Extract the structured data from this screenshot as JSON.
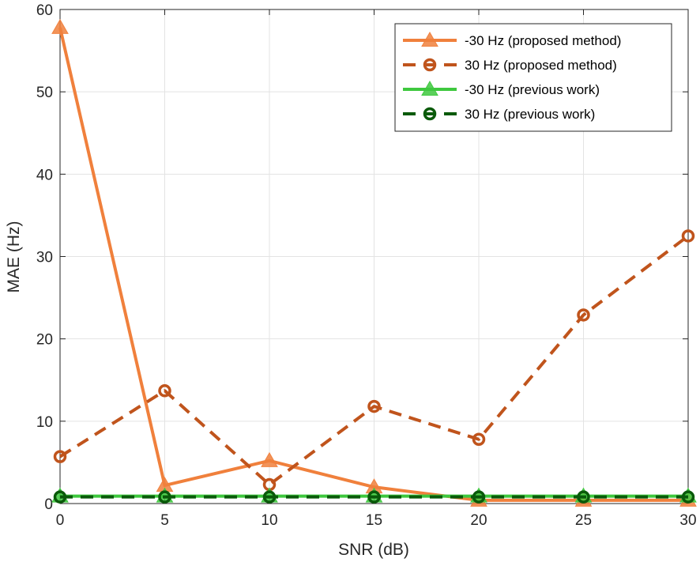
{
  "chart_data": {
    "type": "line",
    "title": "",
    "xlabel": "SNR (dB)",
    "ylabel": "MAE (Hz)",
    "xlim": [
      0,
      30
    ],
    "ylim": [
      0,
      60
    ],
    "xticks": [
      0,
      5,
      10,
      15,
      20,
      25,
      30
    ],
    "yticks": [
      0,
      10,
      20,
      30,
      40,
      50,
      60
    ],
    "grid": true,
    "legend_position": "top-right",
    "x": [
      0,
      5,
      10,
      15,
      20,
      25,
      30
    ],
    "series": [
      {
        "name": "-30 Hz (proposed method)",
        "values": [
          57.8,
          2.2,
          5.2,
          2.0,
          0.4,
          0.4,
          0.4
        ],
        "color": "#f0803c",
        "line_style": "solid",
        "marker": "triangle"
      },
      {
        "name": "30 Hz (proposed method)",
        "values": [
          5.7,
          13.7,
          2.3,
          11.8,
          7.8,
          22.9,
          32.5
        ],
        "color": "#c0541c",
        "line_style": "dashed",
        "marker": "circle"
      },
      {
        "name": "-30 Hz (previous work)",
        "values": [
          0.9,
          0.9,
          0.9,
          0.9,
          0.9,
          0.9,
          0.9
        ],
        "color": "#3ec83e",
        "line_style": "solid",
        "marker": "triangle"
      },
      {
        "name": "30 Hz (previous work)",
        "values": [
          0.8,
          0.8,
          0.8,
          0.8,
          0.8,
          0.8,
          0.8
        ],
        "color": "#0a5a0a",
        "line_style": "dashed",
        "marker": "circle"
      }
    ]
  }
}
